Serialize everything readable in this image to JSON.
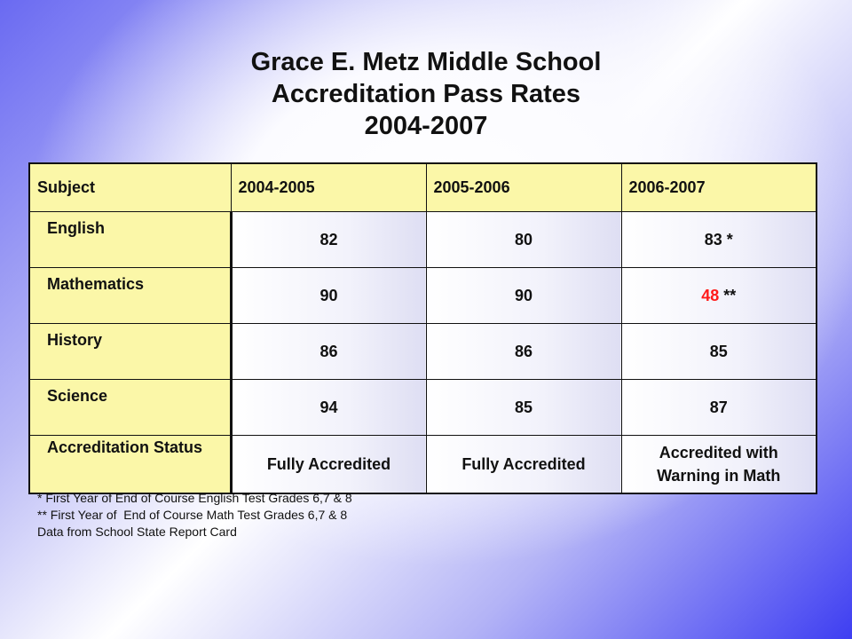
{
  "title": {
    "line1": "Grace E. Metz Middle School",
    "line2": "Accreditation Pass Rates",
    "line3": "2004-2007"
  },
  "table": {
    "headers": [
      "Subject",
      "2004-2005",
      "2005-2006",
      "2006-2007"
    ],
    "rows": [
      {
        "subject": "English",
        "v1": "82",
        "v2": "80",
        "v3": "83",
        "v3_mark": " *",
        "v3_color": "#111111"
      },
      {
        "subject": "Mathematics",
        "v1": "90",
        "v2": "90",
        "v3": "48",
        "v3_mark": " **",
        "v3_color": "#ff1a1a"
      },
      {
        "subject": "History",
        "v1": "86",
        "v2": "86",
        "v3": "85",
        "v3_mark": "",
        "v3_color": "#111111"
      },
      {
        "subject": "Science",
        "v1": "94",
        "v2": "85",
        "v3": "87",
        "v3_mark": "",
        "v3_color": "#111111"
      }
    ],
    "status_row": {
      "label": "Accreditation Status",
      "v1": "Fully Accredited",
      "v2": "Fully Accredited",
      "v3": "Accredited with Warning in Math"
    }
  },
  "footnotes": [
    "* First Year of End of Course English Test Grades 6,7 & 8",
    "** First Year of  End of Course Math Test Grades 6,7 & 8",
    "Data from School State Report Card"
  ],
  "colors": {
    "header_fill": "#fbf7a8",
    "highlight": "#ff1a1a",
    "background_edge": "#3e3ef2"
  }
}
